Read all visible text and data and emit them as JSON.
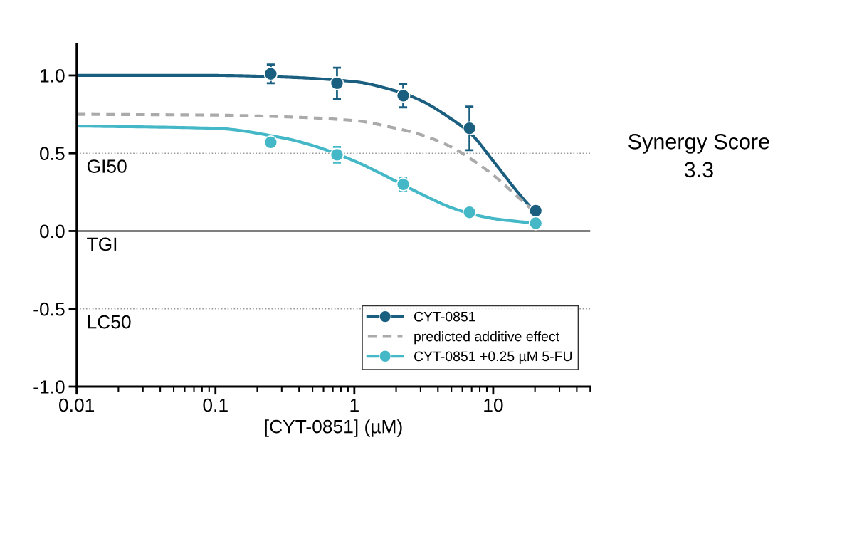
{
  "chart_data": {
    "type": "scatter",
    "xlabel": "[CYT-0851] (µM)",
    "log": "x",
    "xlim": [
      0.01,
      50
    ],
    "xticks": [
      0.01,
      0.1,
      1,
      10
    ],
    "ylim": [
      -1.0,
      1.2
    ],
    "yticks": [
      {
        "value": -1.0,
        "label": "-1.0"
      },
      {
        "value": -0.5,
        "label": "-0.5"
      },
      {
        "value": 0.0,
        "label": "0.0"
      },
      {
        "value": 0.5,
        "label": "0.5"
      },
      {
        "value": 1.0,
        "label": "1.0"
      }
    ],
    "grid": false,
    "legend": "bottom right",
    "series": [
      {
        "type": "line",
        "marker": "none",
        "color": "#1a5f80",
        "x": [
          0.01,
          0.1,
          0.3,
          1,
          2,
          3,
          5,
          7,
          10,
          15,
          20
        ],
        "values": [
          1.0,
          1.0,
          0.99,
          0.96,
          0.9,
          0.84,
          0.72,
          0.62,
          0.45,
          0.25,
          0.12
        ]
      },
      {
        "type": "line",
        "marker": "none",
        "name": "predicted additive effect",
        "color": "#aaaaaa",
        "line_style": "dashed",
        "x": [
          0.01,
          0.1,
          0.3,
          1,
          2,
          3,
          5,
          7,
          10,
          15,
          20
        ],
        "values": [
          0.75,
          0.745,
          0.735,
          0.71,
          0.66,
          0.62,
          0.54,
          0.46,
          0.36,
          0.22,
          0.12
        ]
      },
      {
        "type": "line",
        "marker": "none",
        "color": "#45b8c8",
        "x": [
          0.01,
          0.1,
          0.3,
          0.5,
          1,
          2,
          3,
          5,
          7,
          10,
          20
        ],
        "values": [
          0.675,
          0.66,
          0.6,
          0.55,
          0.45,
          0.32,
          0.24,
          0.15,
          0.11,
          0.08,
          0.05
        ]
      },
      {
        "marker": "circle",
        "name": "CYT-0851",
        "color": "#1a5f80",
        "x": [
          0.25,
          0.75,
          2.25,
          6.75,
          20.25
        ],
        "values": [
          1.01,
          0.95,
          0.87,
          0.66,
          0.13
        ],
        "errors": [
          0.06,
          0.1,
          0.075,
          0.14,
          null
        ]
      },
      {
        "marker": "circle",
        "name": "CYT-0851 +0.25 µM 5-FU",
        "color": "#45b8c8",
        "x": [
          0.25,
          0.75,
          2.25,
          6.75,
          20.25
        ],
        "values": [
          0.57,
          0.49,
          0.3,
          0.12,
          0.05
        ],
        "errors": [
          null,
          0.05,
          0.04,
          null,
          null
        ]
      }
    ],
    "ref_lines": [
      {
        "axis": "y",
        "value": 0.5,
        "label": "GI50",
        "color": "#999999",
        "line_style": "dotted"
      },
      {
        "axis": "y",
        "value": 0.0,
        "label": "TGI",
        "color": "#000000",
        "line_style": "solid"
      },
      {
        "axis": "y",
        "value": -0.5,
        "label": "LC50",
        "color": "#999999",
        "line_style": "dotted"
      }
    ],
    "annotations": [
      "Synergy Score\n3.3"
    ]
  }
}
